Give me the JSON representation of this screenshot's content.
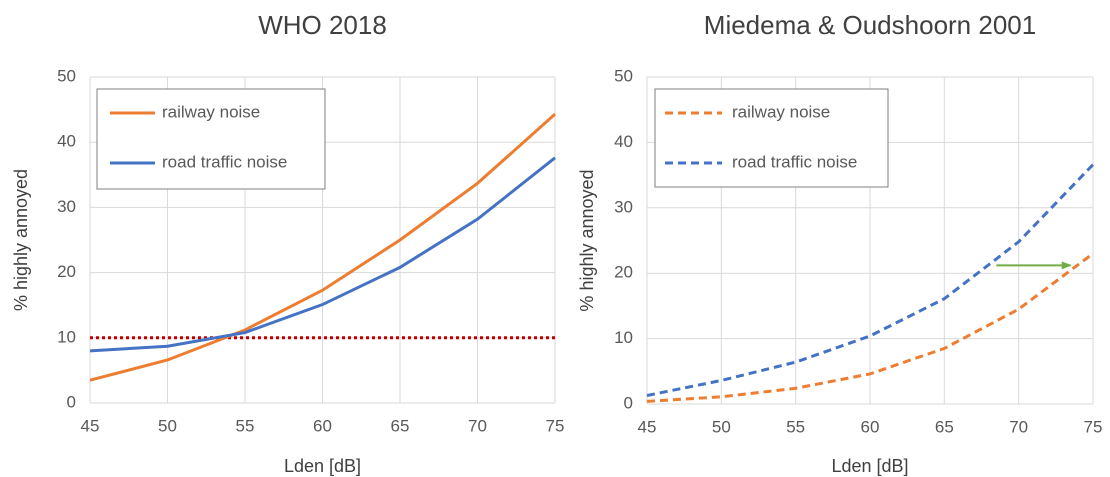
{
  "chart_data": [
    {
      "type": "line",
      "title": "WHO 2018",
      "x_label": "Lden [dB]",
      "y_label": "% highly annoyed",
      "x": [
        45,
        50,
        55,
        60,
        65,
        70,
        75
      ],
      "xlim": [
        45,
        75
      ],
      "xticks": [
        45,
        50,
        55,
        60,
        65,
        70,
        75
      ],
      "ylim": [
        0,
        50
      ],
      "yticks": [
        0,
        10,
        20,
        30,
        40,
        50
      ],
      "grid": true,
      "legend": "upper left",
      "series": [
        {
          "name": "railway noise",
          "color": "#ed7d31",
          "line_style": "solid",
          "values": [
            3.5,
            6.6,
            11.2,
            17.3,
            25,
            33.7,
            44.3
          ]
        },
        {
          "name": "road traffic noise",
          "color": "#4472c4",
          "line_style": "solid",
          "values": [
            8,
            8.7,
            10.8,
            15.1,
            20.8,
            28.2,
            37.6
          ]
        }
      ],
      "reference_line": {
        "value": 10,
        "color": "#c00000"
      }
    },
    {
      "type": "line",
      "title": "Miedema & Oudshoorn 2001",
      "x_label": "Lden [dB]",
      "y_label": "% highly annoyed",
      "x": [
        45,
        50,
        55,
        60,
        65,
        70,
        75
      ],
      "xlim": [
        45,
        75
      ],
      "xticks": [
        45,
        50,
        55,
        60,
        65,
        70,
        75
      ],
      "ylim": [
        0,
        50
      ],
      "yticks": [
        0,
        10,
        20,
        30,
        40,
        50
      ],
      "grid": true,
      "legend": "upper left",
      "series": [
        {
          "name": "railway noise",
          "color": "#ed7d31",
          "line_style": "dashed",
          "values": [
            0.4,
            1.1,
            2.4,
            4.6,
            8.5,
            14.5,
            23
          ]
        },
        {
          "name": "road traffic noise",
          "color": "#4472c4",
          "line_style": "dashed",
          "values": [
            1.3,
            3.6,
            6.4,
            10.4,
            16.1,
            24.8,
            36.6
          ]
        }
      ],
      "arrow": {
        "x": [
          68.5,
          73.5
        ],
        "y": 21.2,
        "color": "#70ad47"
      }
    }
  ]
}
